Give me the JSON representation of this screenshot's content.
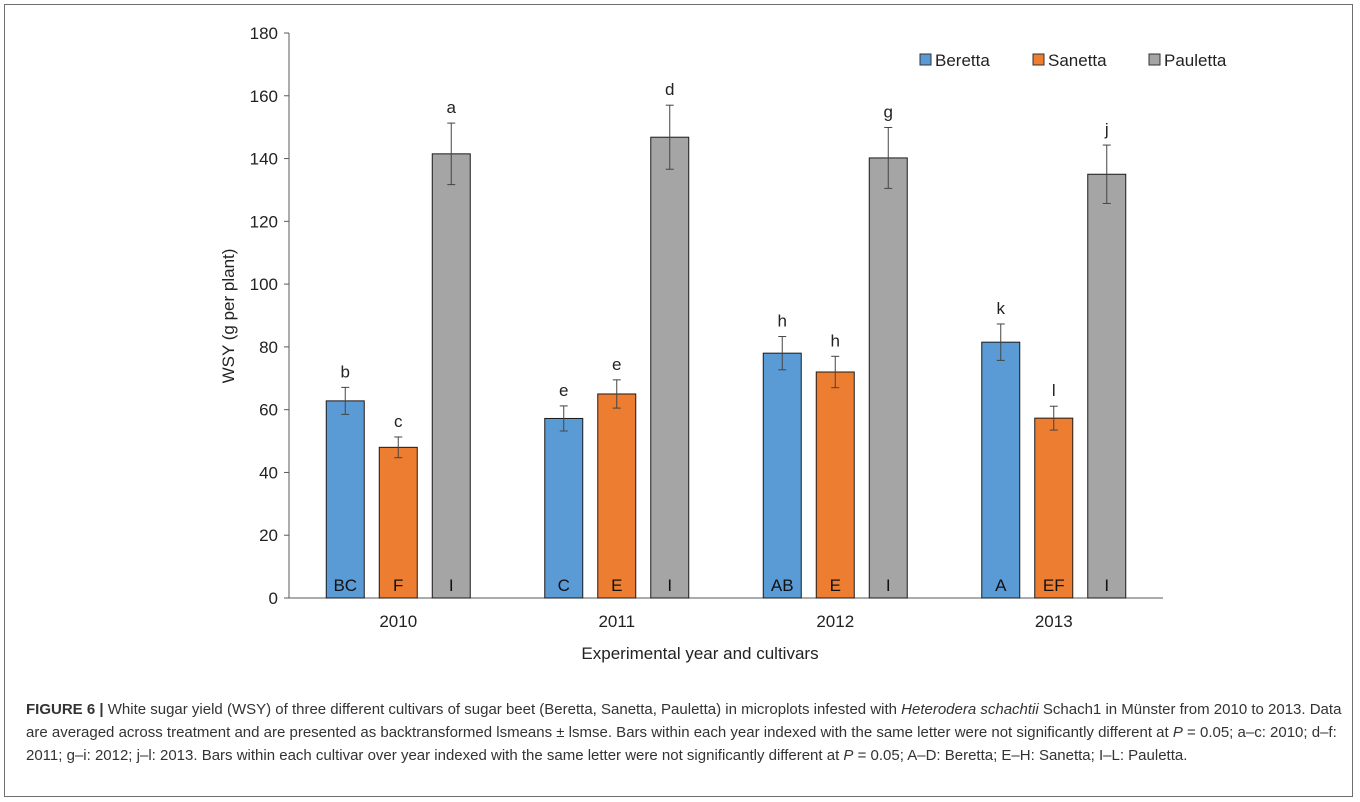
{
  "chart_data": {
    "type": "bar",
    "ylabel": "WSY (g per plant)",
    "xlabel": "Experimental year and cultivars",
    "ylim": [
      0,
      180
    ],
    "yticks": [
      0,
      20,
      40,
      60,
      80,
      100,
      120,
      140,
      160,
      180
    ],
    "categories": [
      "2010",
      "2011",
      "2012",
      "2013"
    ],
    "legend_position": "top-right",
    "grid": false,
    "series": [
      {
        "name": "Beretta",
        "color": "#5b9bd5",
        "values": [
          62.8,
          57.2,
          78.0,
          81.5
        ],
        "errors": [
          4.3,
          4.0,
          5.3,
          5.8
        ],
        "top_letters": [
          "b",
          "e",
          "h",
          "k"
        ],
        "bottom_letters": [
          "BC",
          "C",
          "AB",
          "A"
        ]
      },
      {
        "name": "Sanetta",
        "color": "#ed7d31",
        "values": [
          48.0,
          65.0,
          72.0,
          57.3
        ],
        "errors": [
          3.3,
          4.5,
          5.0,
          3.8
        ],
        "top_letters": [
          "c",
          "e",
          "h",
          "l"
        ],
        "bottom_letters": [
          "F",
          "E",
          "E",
          "EF"
        ]
      },
      {
        "name": "Pauletta",
        "color": "#a5a5a5",
        "values": [
          141.5,
          146.8,
          140.2,
          135.0
        ],
        "errors": [
          9.8,
          10.2,
          9.7,
          9.3
        ],
        "top_letters": [
          "a",
          "d",
          "g",
          "j"
        ],
        "bottom_letters": [
          "I",
          "I",
          "I",
          "I"
        ]
      }
    ]
  },
  "caption": {
    "label": "FIGURE 6",
    "separator": "|",
    "text_1": " White sugar yield (WSY) of three different cultivars of sugar beet (Beretta, Sanetta, Pauletta) in microplots infested with ",
    "species": "Heterodera schachtii",
    "text_2": " Schach1 in Münster from 2010 to 2013. Data are averaged across treatment and are presented as backtransformed lsmeans ± lsmse. Bars within each year indexed with the same letter were not significantly different at ",
    "p_symbol_1": "P",
    "text_3": " = 0.05; a–c: 2010; d–f: 2011; g–i: 2012; j–l: 2013. Bars within each cultivar over year indexed with the same letter were not significantly different at ",
    "p_symbol_2": "P",
    "text_4": " = 0.05; A–D: Beretta; E–H: Sanetta; I–L: Pauletta."
  }
}
